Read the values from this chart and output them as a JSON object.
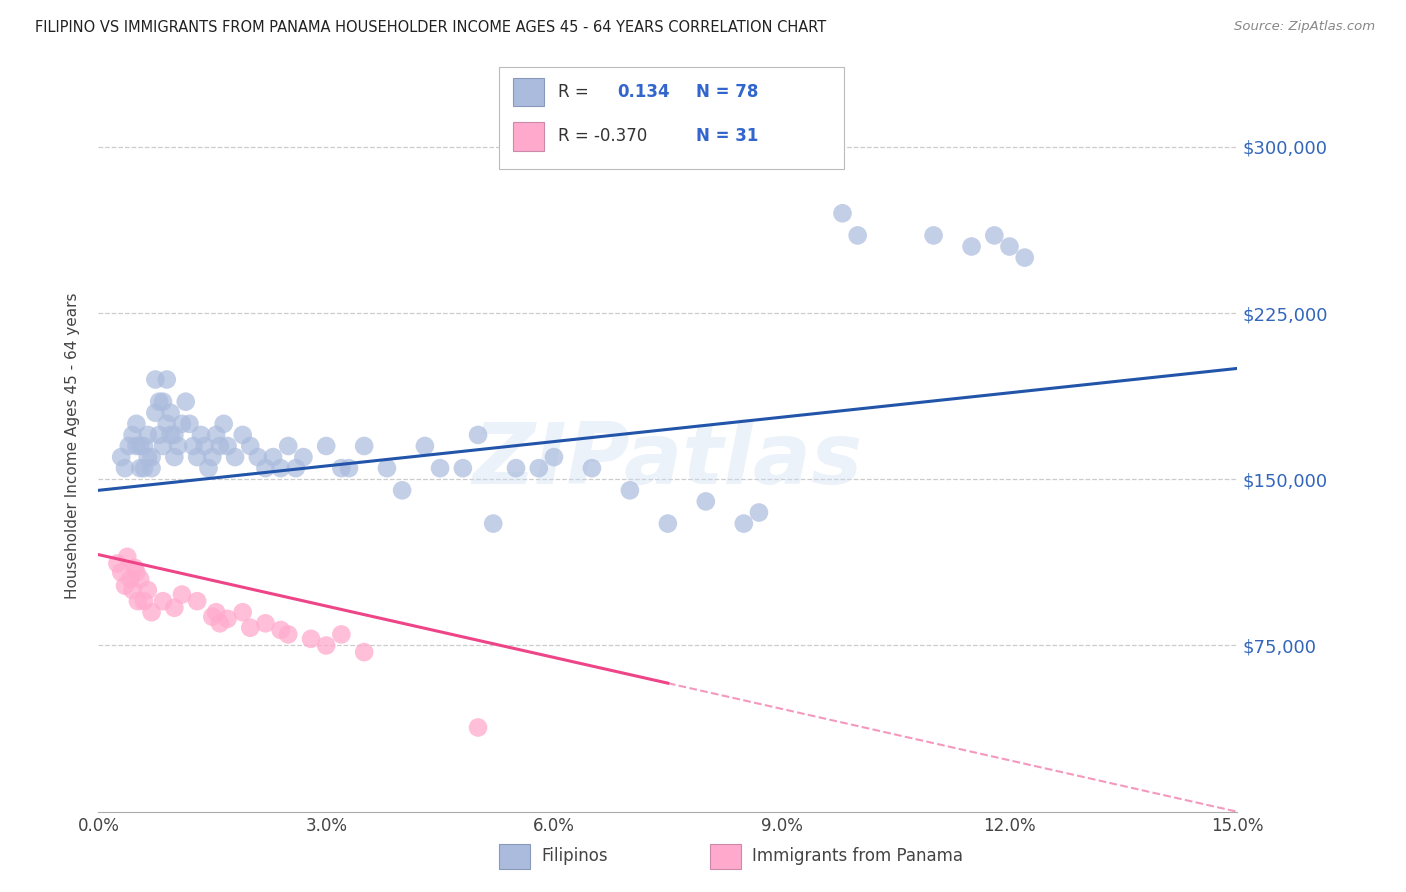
{
  "title": "FILIPINO VS IMMIGRANTS FROM PANAMA HOUSEHOLDER INCOME AGES 45 - 64 YEARS CORRELATION CHART",
  "source": "Source: ZipAtlas.com",
  "ylabel": "Householder Income Ages 45 - 64 years",
  "xlim": [
    0.0,
    15.0
  ],
  "ylim": [
    0,
    330000
  ],
  "xtick_vals": [
    0.0,
    3.0,
    6.0,
    9.0,
    12.0,
    15.0
  ],
  "xtick_labels": [
    "0.0%",
    "3.0%",
    "6.0%",
    "9.0%",
    "12.0%",
    "15.0%"
  ],
  "ytick_right_vals": [
    300000,
    225000,
    150000,
    75000
  ],
  "ytick_right_labels": [
    "$300,000",
    "$225,000",
    "$150,000",
    "$75,000"
  ],
  "watermark": "ZIPatlas",
  "blue_color": "#AABBDD",
  "pink_color": "#FFAACC",
  "line_blue_color": "#2255AA",
  "line_pink_color": "#EE4488",
  "blue_x": [
    0.3,
    0.35,
    0.4,
    0.45,
    0.5,
    0.5,
    0.55,
    0.55,
    0.6,
    0.6,
    0.65,
    0.65,
    0.7,
    0.7,
    0.75,
    0.75,
    0.8,
    0.8,
    0.85,
    0.85,
    0.9,
    0.9,
    0.95,
    0.95,
    1.0,
    1.0,
    1.05,
    1.1,
    1.15,
    1.2,
    1.25,
    1.3,
    1.35,
    1.4,
    1.45,
    1.5,
    1.55,
    1.6,
    1.65,
    1.7,
    1.8,
    1.9,
    2.0,
    2.1,
    2.2,
    2.5,
    2.6,
    2.7,
    3.0,
    3.2,
    3.5,
    3.8,
    4.0,
    4.3,
    4.5,
    5.0,
    5.5,
    6.0,
    6.5,
    7.0,
    8.0,
    8.5,
    9.8,
    10.0,
    11.0,
    11.5,
    11.8,
    12.0,
    12.2,
    2.3,
    2.4,
    3.3,
    4.8,
    5.2,
    5.8,
    7.5,
    8.7
  ],
  "blue_y": [
    160000,
    155000,
    165000,
    170000,
    165000,
    175000,
    155000,
    165000,
    155000,
    165000,
    160000,
    170000,
    155000,
    160000,
    180000,
    195000,
    170000,
    185000,
    165000,
    185000,
    175000,
    195000,
    170000,
    180000,
    160000,
    170000,
    165000,
    175000,
    185000,
    175000,
    165000,
    160000,
    170000,
    165000,
    155000,
    160000,
    170000,
    165000,
    175000,
    165000,
    160000,
    170000,
    165000,
    160000,
    155000,
    165000,
    155000,
    160000,
    165000,
    155000,
    165000,
    155000,
    145000,
    165000,
    155000,
    170000,
    155000,
    160000,
    155000,
    145000,
    140000,
    130000,
    270000,
    260000,
    260000,
    255000,
    260000,
    255000,
    250000,
    160000,
    155000,
    155000,
    155000,
    130000,
    155000,
    130000,
    135000
  ],
  "pink_x": [
    0.25,
    0.3,
    0.35,
    0.38,
    0.42,
    0.45,
    0.48,
    0.5,
    0.52,
    0.55,
    0.6,
    0.65,
    0.7,
    0.85,
    1.0,
    1.1,
    1.3,
    1.5,
    1.55,
    1.6,
    1.7,
    1.9,
    2.0,
    2.2,
    2.4,
    2.5,
    2.8,
    3.0,
    3.2,
    3.5,
    5.0
  ],
  "pink_y": [
    112000,
    108000,
    102000,
    115000,
    105000,
    100000,
    110000,
    108000,
    95000,
    105000,
    95000,
    100000,
    90000,
    95000,
    92000,
    98000,
    95000,
    88000,
    90000,
    85000,
    87000,
    90000,
    83000,
    85000,
    82000,
    80000,
    78000,
    75000,
    80000,
    72000,
    38000
  ],
  "blue_line_x0": 0.0,
  "blue_line_y0": 145000,
  "blue_line_x1": 15.0,
  "blue_line_y1": 200000,
  "pink_line_x0": 0.0,
  "pink_line_y0": 116000,
  "pink_line_x1": 7.5,
  "pink_line_y1": 58000
}
